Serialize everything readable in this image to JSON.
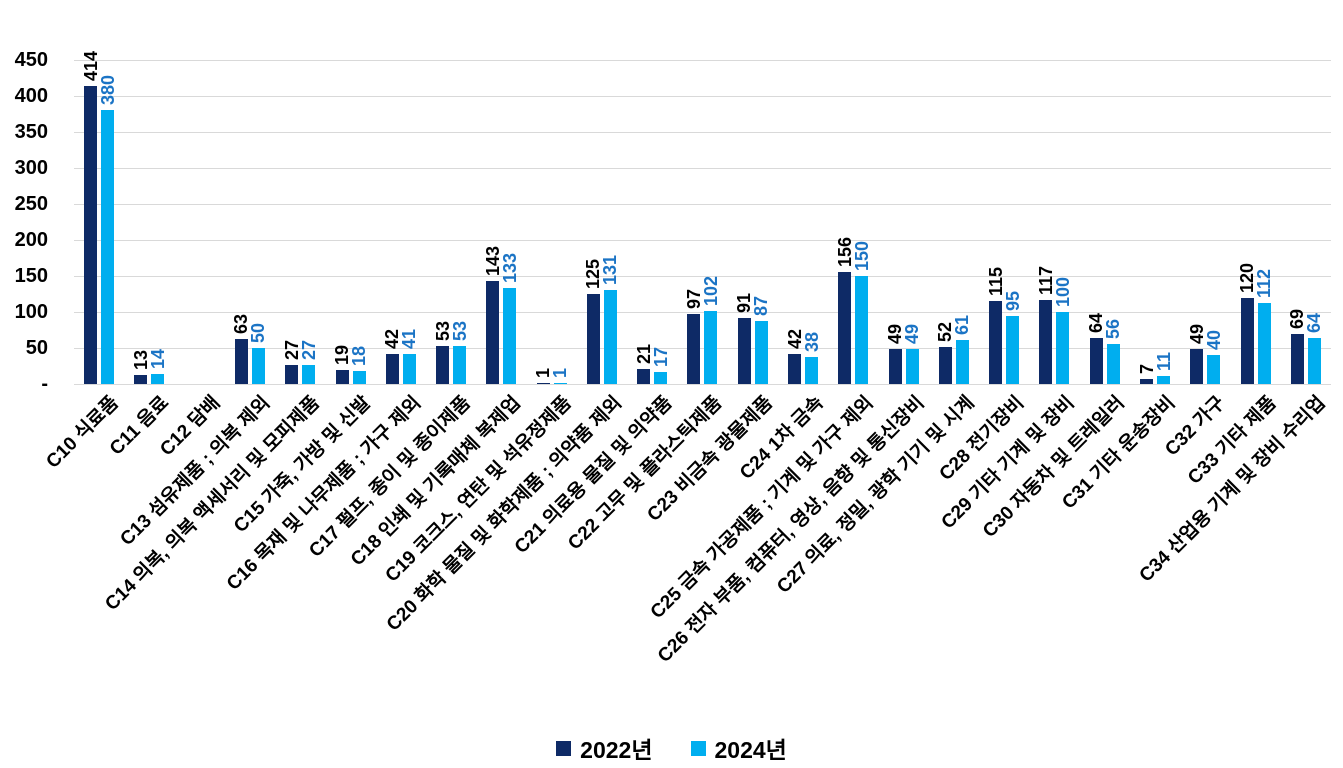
{
  "colors": {
    "series_2022_bar": "#0e2a66",
    "series_2024_bar": "#00aeef",
    "series_2022_label": "#000000",
    "series_2024_label": "#1b74c5",
    "gridline": "#d9d9d9",
    "axis_text": "#000000",
    "background": "#ffffff"
  },
  "chart_data": {
    "type": "bar",
    "title": "",
    "xlabel": "",
    "ylabel": "",
    "ylim": [
      0,
      450
    ],
    "y_ticks": [
      450,
      400,
      350,
      300,
      250,
      200,
      150,
      100,
      50,
      0
    ],
    "y_tick_labels": [
      "450",
      "400",
      "350",
      "300",
      "250",
      "200",
      "150",
      "100",
      "50",
      "-"
    ],
    "grid": "horizontal",
    "legend_position": "bottom",
    "value_label_style": "rotated 90deg, above each bar",
    "category_label_style": "rotated 45deg",
    "categories": [
      "C10 식료품",
      "C11 음료",
      "C12 담배",
      "C13 섬유제품 ; 의복 제외",
      "C14 의복, 의복 액세서리 및 모피제품",
      "C15 가죽, 가방 및 신발",
      "C16 목재 및 나무제품 ; 가구 제외",
      "C17 펄프, 종이 및 종이제품",
      "C18 인쇄 및 기록매체 복제업",
      "C19 코크스, 연탄 및 석유정제품",
      "C20 화학 물질 및 화학제품 ; 의약품 제외",
      "C21 의료용 물질 및 의약품",
      "C22 고무 및 플라스틱제품",
      "C23 비금속 광물제품",
      "C24 1차 금속",
      "C25 금속 가공제품 ; 기계 및 가구 제외",
      "C26 전자 부품, 컴퓨터, 영상, 음향 및 통신장비",
      "C27 의료, 정밀, 광학 기기 및 시계",
      "C28 전기장비",
      "C29 기타 기계 및 장비",
      "C30 자동차 및 트레일러",
      "C31 기타 운송장비",
      "C32 가구",
      "C33 기타 제품",
      "C34 산업용 기계 및 장비 수리업"
    ],
    "series": [
      {
        "name": "2022년",
        "values": [
          414,
          13,
          null,
          63,
          27,
          19,
          42,
          53,
          143,
          1,
          125,
          21,
          97,
          91,
          42,
          156,
          49,
          52,
          115,
          117,
          64,
          7,
          49,
          120,
          69
        ]
      },
      {
        "name": "2024년",
        "values": [
          380,
          14,
          null,
          50,
          27,
          18,
          41,
          53,
          133,
          1,
          131,
          17,
          102,
          87,
          38,
          150,
          49,
          61,
          95,
          100,
          56,
          11,
          40,
          112,
          64
        ]
      }
    ]
  }
}
